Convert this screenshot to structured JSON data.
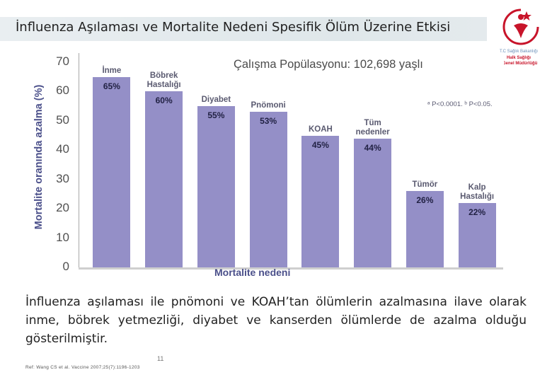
{
  "slide": {
    "title": "İnfluenza Aşılaması ve Mortalite Nedeni Spesifik Ölüm Üzerine Etkisi",
    "logo": {
      "line1": "T.C Sağlık Bakanlığı",
      "line2": "Halk Sağlığı",
      "line3": "Genel Müdürlüğü"
    },
    "paragraph": "İnfluenza aşılaması ile pnömoni ve KOAH’tan ölümlerin azalmasına ilave olarak  inme, böbrek yetmezliği, diyabet ve kanserden ölümlerde de azalma olduğu gösterilmiştir.",
    "page_number": "11",
    "reference": "Ref: Wang CS et al. Vaccine 2007;25(7):1196-1203"
  },
  "chart_data": {
    "type": "bar",
    "subtitle": "Çalışma Popülasyonu:  102,698 yaşlı",
    "note": "ᵃ P<0.0001. ᵇ P<0.05.",
    "ylabel": "Mortalite oranında azalma (%)",
    "xlabel": "Mortalite nedeni",
    "ylim": [
      0,
      70
    ],
    "yticks": [
      0,
      10,
      20,
      30,
      40,
      50,
      60,
      70
    ],
    "grid": false,
    "categories": [
      "İnme",
      "Böbrek\nHastalığı",
      "Diyabet",
      "Pnömoni",
      "KOAH",
      "Tüm\nnedenler",
      "Tümör",
      "Kalp\nHastalığı"
    ],
    "values": [
      65,
      60,
      55,
      53,
      45,
      44,
      26,
      22
    ],
    "value_labels": [
      "65%",
      "60%",
      "55%",
      "53%",
      "45%",
      "44%",
      "26%",
      "22%"
    ],
    "bar_color": "#948fc7"
  }
}
